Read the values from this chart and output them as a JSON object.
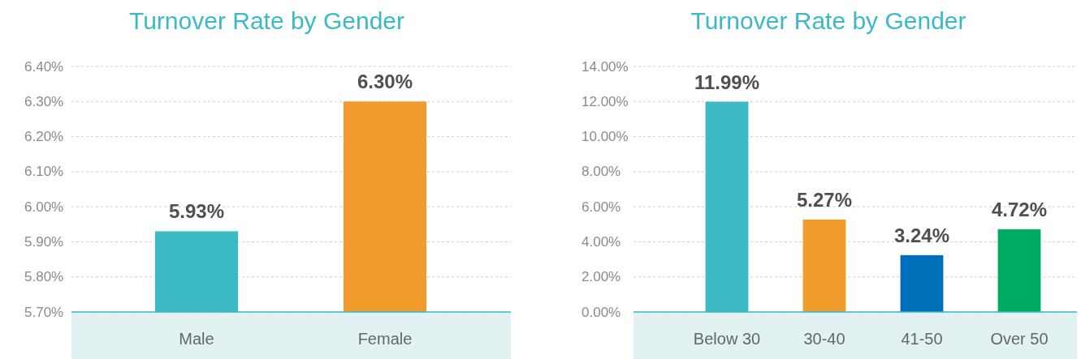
{
  "chart_data": [
    {
      "type": "bar",
      "title": "Turnover Rate by Gender",
      "categories": [
        "Male",
        "Female"
      ],
      "values": [
        5.93,
        6.3
      ],
      "colors": [
        "#3bb9c4",
        "#f29c2e"
      ],
      "value_labels": [
        "5.93%",
        "6.30%"
      ],
      "ylim": [
        5.7,
        6.4
      ],
      "yticks": [
        {
          "value": 5.7,
          "label": "5.70%"
        },
        {
          "value": 5.8,
          "label": "5.80%"
        },
        {
          "value": 5.9,
          "label": "5.90%"
        },
        {
          "value": 6.0,
          "label": "6.00%"
        },
        {
          "value": 6.1,
          "label": "6.10%"
        },
        {
          "value": 6.2,
          "label": "6.20%"
        },
        {
          "value": 6.3,
          "label": "6.30%"
        },
        {
          "value": 6.4,
          "label": "6.40%"
        }
      ],
      "grid": "y"
    },
    {
      "type": "bar",
      "title": "Turnover Rate by Gender",
      "categories": [
        "Below 30",
        "30-40",
        "41-50",
        "Over 50"
      ],
      "values": [
        11.99,
        5.27,
        3.24,
        4.72
      ],
      "colors": [
        "#3bb9c4",
        "#f29c2e",
        "#006fba",
        "#00ab63"
      ],
      "value_labels": [
        "11.99%",
        "5.27%",
        "3.24%",
        "4.72%"
      ],
      "ylim": [
        0,
        14
      ],
      "yticks": [
        {
          "value": 0,
          "label": "0.00%"
        },
        {
          "value": 2,
          "label": "2.00%"
        },
        {
          "value": 4,
          "label": "4.00%"
        },
        {
          "value": 6,
          "label": "6.00%"
        },
        {
          "value": 8,
          "label": "8.00%"
        },
        {
          "value": 10,
          "label": "10.00%"
        },
        {
          "value": 12,
          "label": "12.00%"
        },
        {
          "value": 14,
          "label": "14.00%"
        }
      ],
      "grid": "y"
    }
  ]
}
